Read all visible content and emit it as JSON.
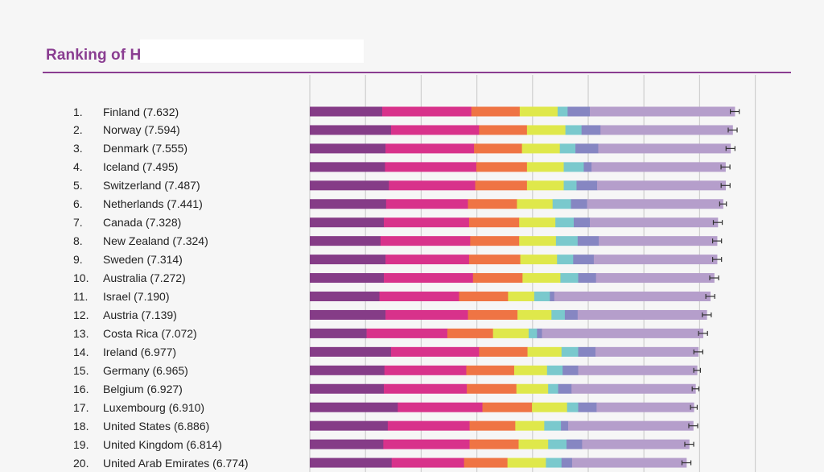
{
  "page": {
    "title": "Ranking of Happiness"
  },
  "chart_data": {
    "type": "bar",
    "stacked": true,
    "orientation": "horizontal",
    "title": "Ranking of Happiness",
    "grid": true,
    "error_bars": true,
    "rows": [
      {
        "rank": "1.",
        "label": "Finland (7.632)",
        "score": 7.632,
        "ci": 0.08,
        "segments": [
          1.3,
          1.6,
          0.87,
          0.68,
          0.18,
          0.4,
          2.602
        ]
      },
      {
        "rank": "2.",
        "label": "Norway (7.594)",
        "score": 7.594,
        "ci": 0.08,
        "segments": [
          1.46,
          1.58,
          0.86,
          0.69,
          0.29,
          0.34,
          2.374
        ]
      },
      {
        "rank": "3.",
        "label": "Denmark (7.555)",
        "score": 7.555,
        "ci": 0.08,
        "segments": [
          1.36,
          1.59,
          0.86,
          0.68,
          0.28,
          0.41,
          2.375
        ]
      },
      {
        "rank": "4.",
        "label": "Iceland (7.495)",
        "score": 7.495,
        "ci": 0.08,
        "segments": [
          1.35,
          1.64,
          0.91,
          0.66,
          0.36,
          0.14,
          2.405
        ]
      },
      {
        "rank": "5.",
        "label": "Switzerland (7.487)",
        "score": 7.487,
        "ci": 0.08,
        "segments": [
          1.42,
          1.55,
          0.93,
          0.66,
          0.23,
          0.37,
          2.307
        ]
      },
      {
        "rank": "6.",
        "label": "Netherlands (7.441)",
        "score": 7.441,
        "ci": 0.06,
        "segments": [
          1.37,
          1.47,
          0.88,
          0.64,
          0.33,
          0.29,
          2.441
        ]
      },
      {
        "rank": "7.",
        "label": "Canada (7.328)",
        "score": 7.328,
        "ci": 0.08,
        "segments": [
          1.33,
          1.53,
          0.9,
          0.65,
          0.33,
          0.29,
          2.297
        ]
      },
      {
        "rank": "8.",
        "label": "New Zealand (7.324)",
        "score": 7.324,
        "ci": 0.08,
        "segments": [
          1.27,
          1.61,
          0.88,
          0.66,
          0.39,
          0.38,
          2.124
        ]
      },
      {
        "rank": "9.",
        "label": "Sweden (7.314)",
        "score": 7.314,
        "ci": 0.08,
        "segments": [
          1.36,
          1.5,
          0.92,
          0.66,
          0.29,
          0.37,
          2.214
        ]
      },
      {
        "rank": "10.",
        "label": "Australia (7.272)",
        "score": 7.272,
        "ci": 0.08,
        "segments": [
          1.33,
          1.6,
          0.89,
          0.68,
          0.32,
          0.32,
          2.122
        ]
      },
      {
        "rank": "11.",
        "label": "Israel (7.190)",
        "score": 7.19,
        "ci": 0.08,
        "segments": [
          1.25,
          1.43,
          0.88,
          0.47,
          0.28,
          0.08,
          2.802
        ]
      },
      {
        "rank": "12.",
        "label": "Austria (7.139)",
        "score": 7.139,
        "ci": 0.08,
        "segments": [
          1.36,
          1.48,
          0.89,
          0.61,
          0.24,
          0.23,
          2.319
        ]
      },
      {
        "rank": "13.",
        "label": "Costa Rica (7.072)",
        "score": 7.072,
        "ci": 0.08,
        "segments": [
          1.02,
          1.45,
          0.82,
          0.64,
          0.15,
          0.09,
          2.892
        ]
      },
      {
        "rank": "14.",
        "label": "Ireland (6.977)",
        "score": 6.977,
        "ci": 0.08,
        "segments": [
          1.46,
          1.58,
          0.87,
          0.61,
          0.3,
          0.31,
          1.847
        ]
      },
      {
        "rank": "15.",
        "label": "Germany (6.965)",
        "score": 6.965,
        "ci": 0.06,
        "segments": [
          1.34,
          1.47,
          0.86,
          0.59,
          0.28,
          0.28,
          2.135
        ]
      },
      {
        "rank": "16.",
        "label": "Belgium (6.927)",
        "score": 6.927,
        "ci": 0.06,
        "segments": [
          1.33,
          1.49,
          0.89,
          0.57,
          0.18,
          0.24,
          2.227
        ]
      },
      {
        "rank": "17.",
        "label": "Luxembourg (6.910)",
        "score": 6.91,
        "ci": 0.06,
        "segments": [
          1.58,
          1.52,
          0.89,
          0.63,
          0.2,
          0.33,
          1.747
        ]
      },
      {
        "rank": "18.",
        "label": "United States (6.886)",
        "score": 6.886,
        "ci": 0.08,
        "segments": [
          1.4,
          1.47,
          0.82,
          0.52,
          0.3,
          0.13,
          2.246
        ]
      },
      {
        "rank": "19.",
        "label": "United Kingdom (6.814)",
        "score": 6.814,
        "ci": 0.08,
        "segments": [
          1.32,
          1.55,
          0.88,
          0.53,
          0.33,
          0.28,
          1.924
        ]
      },
      {
        "rank": "20.",
        "label": "United Arab Emirates (6.774)",
        "score": 6.774,
        "ci": 0.08,
        "segments": [
          1.47,
          1.3,
          0.78,
          0.69,
          0.28,
          0.19,
          2.054
        ]
      }
    ],
    "segment_colors": [
      "#853c87",
      "#d8328b",
      "#ef7444",
      "#dfe84b",
      "#7ac9cd",
      "#8686c2",
      "#b59ecb"
    ],
    "xlim": [
      0,
      8
    ],
    "grid_ticks": [
      0,
      1,
      2,
      3,
      4,
      5,
      6,
      7,
      8
    ]
  }
}
